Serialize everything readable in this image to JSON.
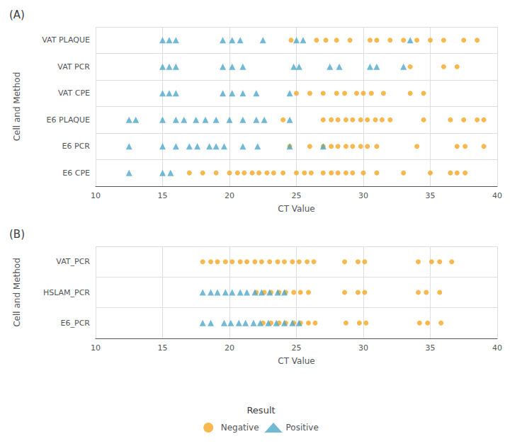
{
  "chart_data": [
    {
      "type": "scatter",
      "title": "(A)",
      "categories": [
        "VAT PLAQUE",
        "VAT PCR",
        "VAT CPE",
        "E6 PLAQUE",
        "E6 PCR",
        "E6 CPE"
      ],
      "series": [
        {
          "name": "Negative",
          "color": "#F5A623",
          "marker": "circle",
          "values": [
            [
              24.6,
              26.5,
              27.2,
              28.0,
              29.0,
              30.5,
              31.0,
              32.0,
              33.0,
              34.0,
              35.0,
              36.0,
              37.5,
              38.5
            ],
            [
              33.5,
              36.0,
              37.0
            ],
            [
              25.0,
              26.0,
              27.0,
              28.0,
              28.6,
              29.5,
              30.0,
              30.6,
              31.5,
              33.5,
              34.5
            ],
            [
              24.0,
              27.0,
              27.6,
              28.1,
              28.7,
              29.2,
              29.8,
              30.3,
              30.9,
              31.4,
              32.0,
              34.5,
              36.5,
              37.5,
              38.5,
              39.0
            ],
            [
              24.5,
              26.0,
              27.0,
              27.6,
              28.1,
              28.7,
              29.2,
              29.8,
              30.3,
              31.0,
              34.0,
              37.0,
              37.6,
              39.0
            ],
            [
              17.0,
              18.0,
              19.0,
              20.0,
              20.6,
              21.1,
              21.7,
              22.2,
              22.8,
              23.3,
              24.0,
              25.0,
              25.6,
              26.1,
              27.0,
              27.6,
              28.1,
              28.7,
              29.2,
              30.0,
              31.0,
              33.0,
              35.0,
              36.5,
              37.0,
              37.6
            ]
          ]
        },
        {
          "name": "Positive",
          "color": "#4EA8C9",
          "marker": "triangle",
          "values": [
            [
              15.0,
              15.5,
              16.0,
              19.5,
              20.2,
              20.8,
              22.5,
              25.0,
              25.5,
              33.5
            ],
            [
              15.0,
              15.5,
              16.0,
              19.5,
              20.2,
              21.0,
              24.8,
              25.2,
              27.5,
              28.2,
              30.5,
              31.0,
              33.0
            ],
            [
              15.0,
              15.5,
              16.0,
              19.5,
              20.2,
              21.0,
              22.0,
              24.5
            ],
            [
              12.5,
              13.0,
              15.0,
              16.0,
              16.6,
              17.5,
              18.2,
              19.0,
              20.0,
              21.0,
              22.0,
              22.6,
              24.5
            ],
            [
              12.5,
              15.0,
              16.0,
              17.0,
              17.6,
              18.5,
              19.0,
              19.6,
              21.0,
              22.1,
              24.5,
              27.0
            ],
            [
              12.5,
              15.0,
              15.6
            ]
          ]
        }
      ],
      "xlabel": "CT Value",
      "ylabel": "Cell and Method",
      "xlim": [
        10,
        40
      ],
      "xticks": [
        10,
        15,
        20,
        25,
        30,
        35,
        40
      ],
      "grid": true
    },
    {
      "type": "scatter",
      "title": "(B)",
      "categories": [
        "VAT_PCR",
        "HSLAM_PCR",
        "E6_PCR"
      ],
      "series": [
        {
          "name": "Negative",
          "color": "#F5A623",
          "marker": "circle",
          "values": [
            [
              18.0,
              18.6,
              19.1,
              19.7,
              20.2,
              20.8,
              21.3,
              21.9,
              22.4,
              23.0,
              23.6,
              24.1,
              24.7,
              25.2,
              25.8,
              26.3,
              28.6,
              29.6,
              30.1,
              34.1,
              35.1,
              35.7,
              36.6
            ],
            [
              22.0,
              22.6,
              23.1,
              23.7,
              24.2,
              24.8,
              25.3,
              25.9,
              28.6,
              29.6,
              30.1,
              34.1,
              34.7,
              35.7
            ],
            [
              22.5,
              23.1,
              23.7,
              24.2,
              24.8,
              25.3,
              25.9,
              26.4,
              28.7,
              29.7,
              30.2,
              34.2,
              34.8,
              35.8
            ]
          ]
        },
        {
          "name": "Positive",
          "color": "#4EA8C9",
          "marker": "triangle",
          "values": [
            [],
            [
              18.0,
              18.6,
              19.1,
              19.7,
              20.2,
              20.8,
              21.3,
              21.9,
              22.4,
              23.0,
              23.6,
              24.1
            ],
            [
              18.0,
              18.6,
              19.6,
              20.1,
              20.7,
              21.2,
              21.8,
              22.3,
              22.9,
              23.5,
              24.1,
              24.7,
              25.2
            ]
          ]
        }
      ],
      "xlabel": "CT Value",
      "ylabel": "Cell and Method",
      "xlim": [
        10,
        40
      ],
      "xticks": [
        10,
        15,
        20,
        25,
        30,
        35,
        40
      ],
      "grid": true,
      "legend": "bottom",
      "legend_title": "Result"
    }
  ]
}
